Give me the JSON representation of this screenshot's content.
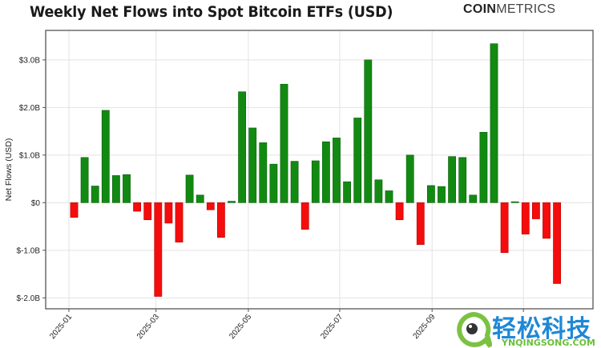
{
  "header": {
    "title": "Weekly Net Flows into Spot Bitcoin ETFs (USD)",
    "brand_bold": "COIN",
    "brand_light": "METRICS"
  },
  "watermark": {
    "cn_text": "轻松科技",
    "en_text": "YNQINGSONG.COM"
  },
  "colors": {
    "positive": "#128a12",
    "negative": "#f50c0c",
    "grid": "#e3e3e3",
    "frame": "#555555"
  },
  "chart_data": {
    "type": "bar",
    "title": "Weekly Net Flows into Spot Bitcoin ETFs (USD)",
    "xlabel": "",
    "ylabel": "Net Flows (USD)",
    "ylim": [
      -2.23,
      3.62
    ],
    "grid": true,
    "legend": null,
    "units": "billions USD",
    "y_ticks": [
      {
        "value": 3.0,
        "label": "$3.0B"
      },
      {
        "value": 2.0,
        "label": "$2.0B"
      },
      {
        "value": 1.0,
        "label": "$1.0B"
      },
      {
        "value": 0,
        "label": "$0"
      },
      {
        "value": -1.0,
        "label": "$-1.0B"
      },
      {
        "value": -2.0,
        "label": "$-2.0B"
      }
    ],
    "x_ticks": [
      {
        "label": "2025-01",
        "bar_index": -0.5
      },
      {
        "label": "2025-03",
        "bar_index": 7.8
      },
      {
        "label": "2025-05",
        "bar_index": 16.6
      },
      {
        "label": "2025-07",
        "bar_index": 25.3
      },
      {
        "label": "2025-09",
        "bar_index": 34.1
      },
      {
        "label": "",
        "bar_index": 42.8
      }
    ],
    "series": [
      {
        "name": "Weekly Net Flows",
        "values": [
          -0.31,
          0.95,
          0.35,
          1.94,
          0.57,
          0.59,
          -0.18,
          -0.36,
          -1.97,
          -0.43,
          -0.83,
          0.58,
          0.16,
          -0.15,
          -0.73,
          0.03,
          2.33,
          1.57,
          1.26,
          0.81,
          2.49,
          0.87,
          -0.56,
          0.88,
          1.28,
          1.36,
          0.44,
          1.78,
          3.0,
          0.48,
          0.25,
          -0.36,
          1.0,
          -0.88,
          0.36,
          0.34,
          0.97,
          0.95,
          0.16,
          1.48,
          3.34,
          -1.05,
          0.02,
          -0.66,
          -0.34,
          -0.75,
          -1.7
        ]
      }
    ]
  }
}
